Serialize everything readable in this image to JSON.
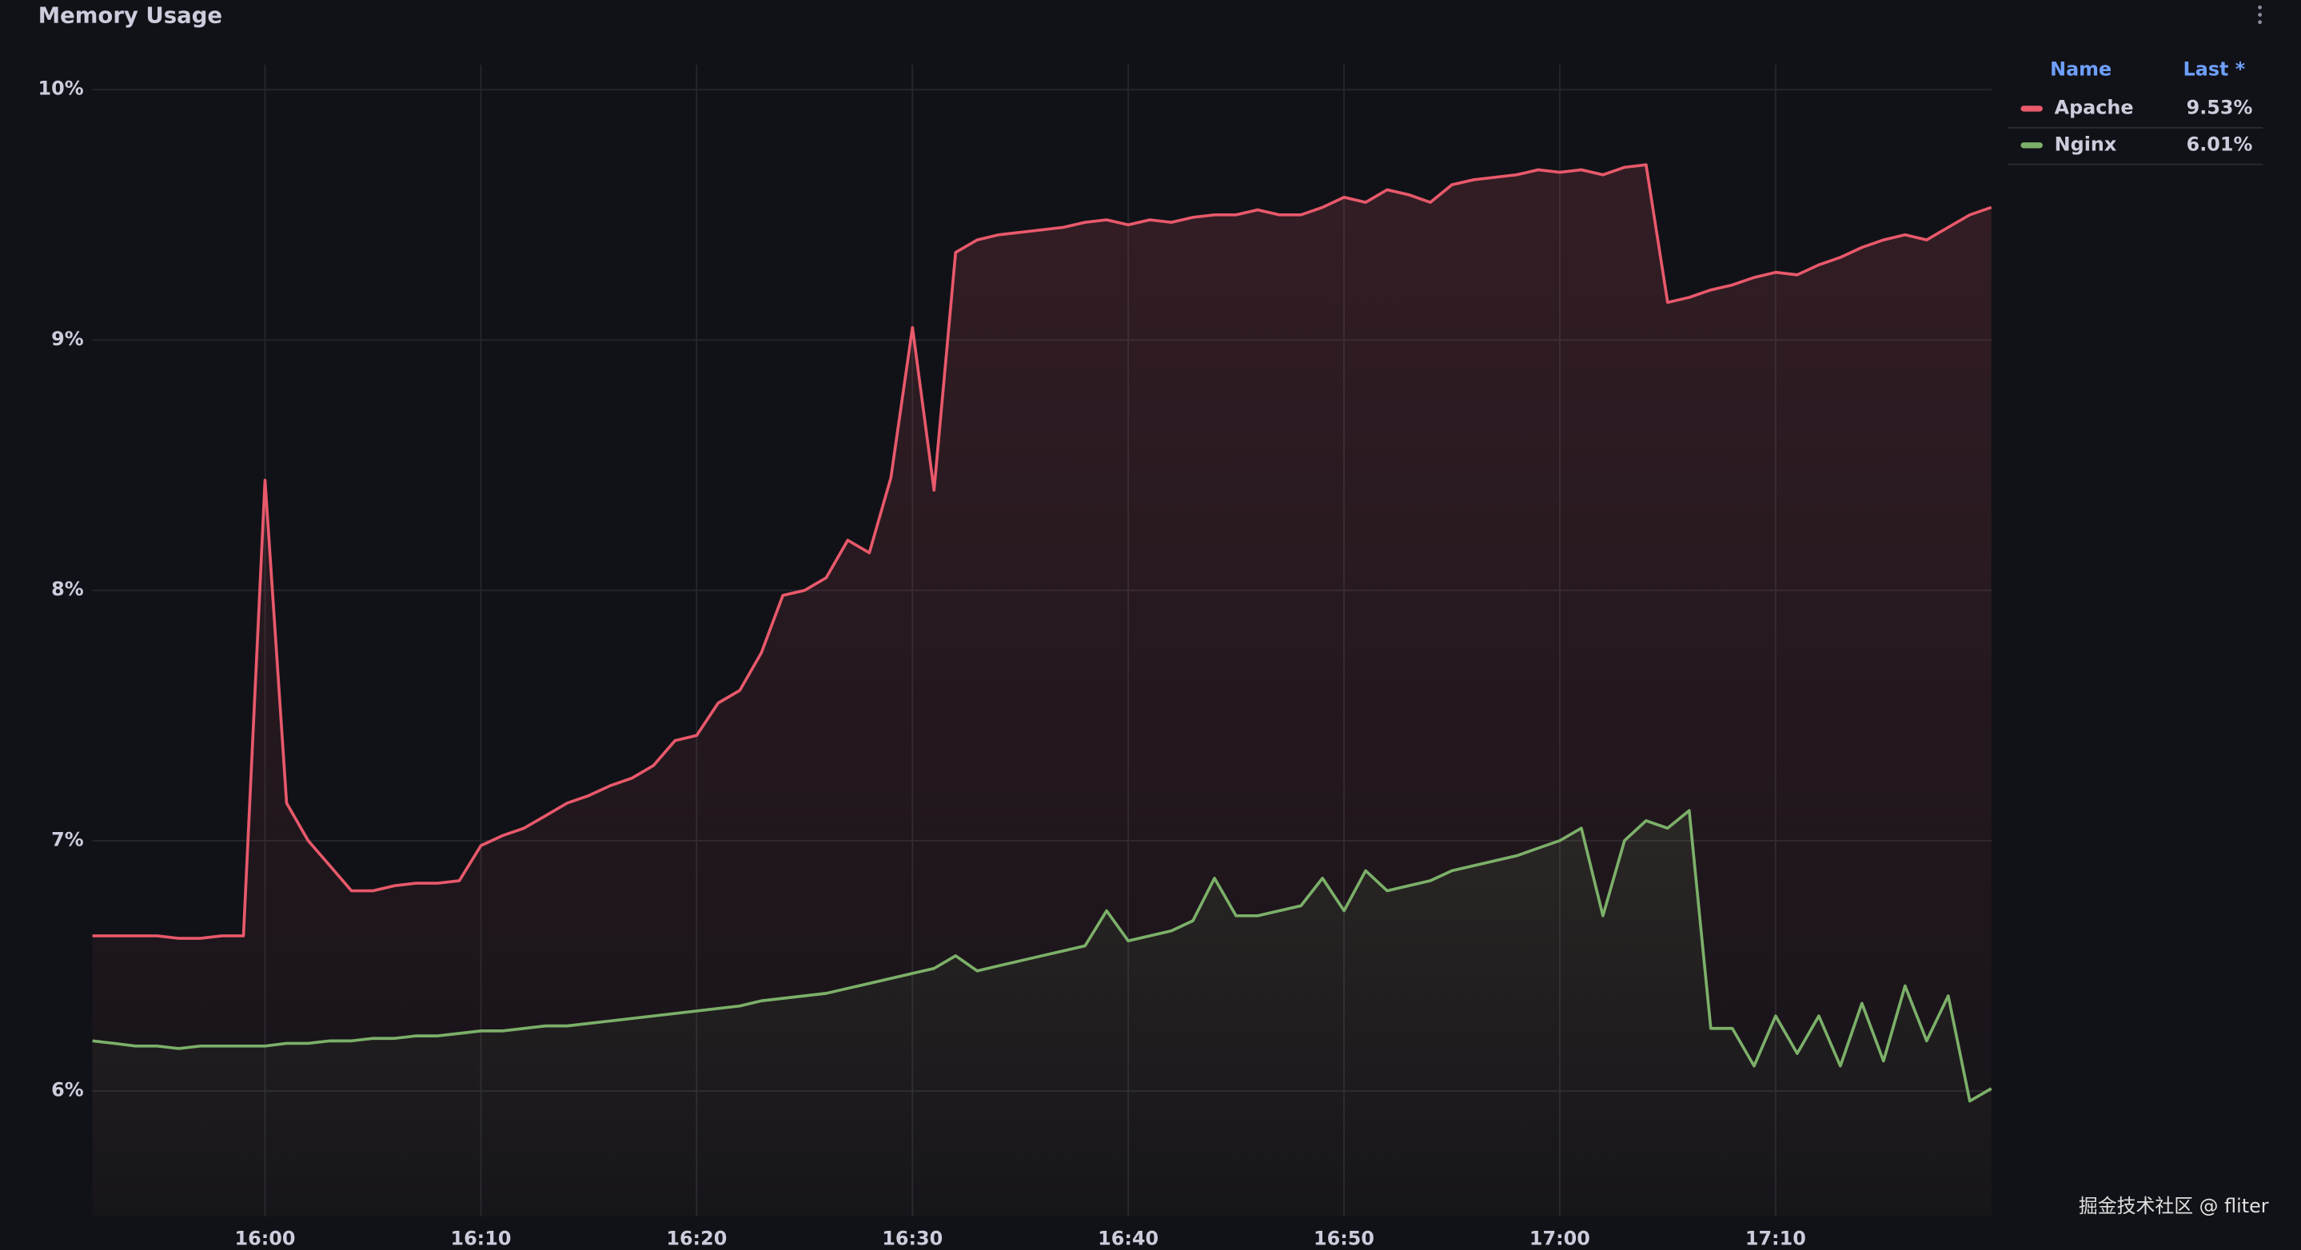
{
  "chart_data": {
    "type": "line",
    "title": "Memory Usage",
    "x": [
      "15:52",
      "15:53",
      "15:54",
      "15:55",
      "15:56",
      "15:57",
      "15:58",
      "15:59",
      "16:00",
      "16:01",
      "16:02",
      "16:03",
      "16:04",
      "16:05",
      "16:06",
      "16:07",
      "16:08",
      "16:09",
      "16:10",
      "16:11",
      "16:12",
      "16:13",
      "16:14",
      "16:15",
      "16:16",
      "16:17",
      "16:18",
      "16:19",
      "16:20",
      "16:21",
      "16:22",
      "16:23",
      "16:24",
      "16:25",
      "16:26",
      "16:27",
      "16:28",
      "16:29",
      "16:30",
      "16:31",
      "16:32",
      "16:33",
      "16:34",
      "16:35",
      "16:36",
      "16:37",
      "16:38",
      "16:39",
      "16:40",
      "16:41",
      "16:42",
      "16:43",
      "16:44",
      "16:45",
      "16:46",
      "16:47",
      "16:48",
      "16:49",
      "16:50",
      "16:51",
      "16:52",
      "16:53",
      "16:54",
      "16:55",
      "16:56",
      "16:57",
      "16:58",
      "16:59",
      "17:00",
      "17:01",
      "17:02",
      "17:03",
      "17:04",
      "17:05",
      "17:06",
      "17:07",
      "17:08",
      "17:09",
      "17:10",
      "17:11",
      "17:12",
      "17:13",
      "17:14",
      "17:15",
      "17:16",
      "17:17",
      "17:18",
      "17:19",
      "17:20"
    ],
    "series": [
      {
        "name": "Apache",
        "color": "#e8596b",
        "last": 9.53,
        "last_label": "9.53%",
        "values": [
          6.62,
          6.62,
          6.62,
          6.62,
          6.61,
          6.61,
          6.62,
          6.62,
          8.44,
          7.15,
          7.0,
          6.9,
          6.8,
          6.8,
          6.82,
          6.83,
          6.83,
          6.84,
          6.98,
          7.02,
          7.05,
          7.1,
          7.15,
          7.18,
          7.22,
          7.25,
          7.3,
          7.4,
          7.42,
          7.55,
          7.6,
          7.75,
          7.98,
          8.0,
          8.05,
          8.2,
          8.15,
          8.45,
          9.05,
          8.4,
          9.35,
          9.4,
          9.42,
          9.43,
          9.44,
          9.45,
          9.47,
          9.48,
          9.46,
          9.48,
          9.47,
          9.49,
          9.5,
          9.5,
          9.52,
          9.5,
          9.5,
          9.53,
          9.57,
          9.55,
          9.6,
          9.58,
          9.55,
          9.62,
          9.64,
          9.65,
          9.66,
          9.68,
          9.67,
          9.68,
          9.66,
          9.69,
          9.7,
          9.15,
          9.17,
          9.2,
          9.22,
          9.25,
          9.27,
          9.26,
          9.3,
          9.33,
          9.37,
          9.4,
          9.42,
          9.4,
          9.45,
          9.5,
          9.53
        ]
      },
      {
        "name": "Nginx",
        "color": "#7cb069",
        "last": 6.01,
        "last_label": "6.01%",
        "values": [
          6.2,
          6.19,
          6.18,
          6.18,
          6.17,
          6.18,
          6.18,
          6.18,
          6.18,
          6.19,
          6.19,
          6.2,
          6.2,
          6.21,
          6.21,
          6.22,
          6.22,
          6.23,
          6.24,
          6.24,
          6.25,
          6.26,
          6.26,
          6.27,
          6.28,
          6.29,
          6.3,
          6.31,
          6.32,
          6.33,
          6.34,
          6.36,
          6.37,
          6.38,
          6.39,
          6.41,
          6.43,
          6.45,
          6.47,
          6.49,
          6.54,
          6.48,
          6.5,
          6.52,
          6.54,
          6.56,
          6.58,
          6.72,
          6.6,
          6.62,
          6.64,
          6.68,
          6.85,
          6.7,
          6.7,
          6.72,
          6.74,
          6.85,
          6.72,
          6.88,
          6.8,
          6.82,
          6.84,
          6.88,
          6.9,
          6.92,
          6.94,
          6.97,
          7.0,
          7.05,
          6.7,
          7.0,
          7.08,
          7.05,
          7.12,
          6.25,
          6.25,
          6.1,
          6.3,
          6.15,
          6.3,
          6.1,
          6.35,
          6.12,
          6.42,
          6.2,
          6.38,
          5.96,
          6.01
        ]
      }
    ],
    "xlim": [
      "15:52",
      "17:20"
    ],
    "xticks": [
      "16:00",
      "16:10",
      "16:20",
      "16:30",
      "16:40",
      "16:50",
      "17:00",
      "17:10"
    ],
    "ylim": [
      5.5,
      10.1
    ],
    "yticks": [
      {
        "value": 6,
        "label": "6%"
      },
      {
        "value": 7,
        "label": "7%"
      },
      {
        "value": 8,
        "label": "8%"
      },
      {
        "value": 9,
        "label": "9%"
      },
      {
        "value": 10,
        "label": "10%"
      }
    ],
    "grid": true,
    "legend": {
      "position": "right",
      "headers": [
        "Name",
        "Last *"
      ]
    },
    "watermark": "掘金技术社区 @ fliter"
  }
}
